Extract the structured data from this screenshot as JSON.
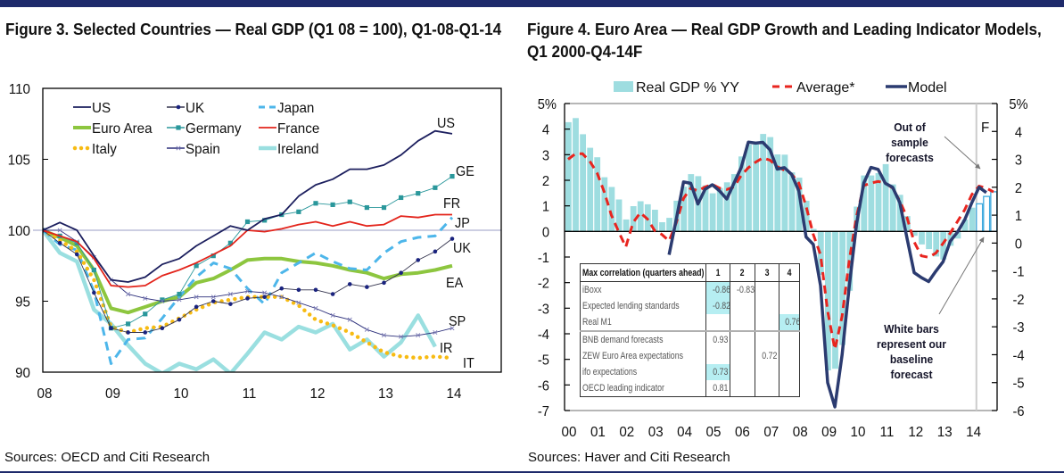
{
  "figure3": {
    "title": "Figure 3. Selected Countries — Real GDP (Q1 08 = 100), Q1-08-Q1-14",
    "source": "Sources: OECD and Citi Research"
  },
  "figure4": {
    "title_line1": "Figure 4. Euro Area — Real GDP Growth and Leading Indicator Models,",
    "title_line2": "Q1 2000-Q4-14F",
    "source": "Sources: Haver and Citi Research"
  },
  "chart_data": [
    {
      "type": "line",
      "title": "Figure 3. Selected Countries — Real GDP (Q1 08 = 100), Q1-08-Q1-14",
      "xlabel": "",
      "ylabel": "",
      "x_range": [
        "Q1-08",
        "Q1-14"
      ],
      "x_ticks": [
        "08",
        "09",
        "10",
        "11",
        "12",
        "13",
        "14"
      ],
      "y_ticks": [
        110,
        105,
        100,
        95,
        90
      ],
      "ylim": [
        90,
        110
      ],
      "reference_line": 100,
      "grid": false,
      "legend_position": "top-left",
      "legend": [
        "US",
        "UK",
        "Japan",
        "Euro Area",
        "Germany",
        "France",
        "Italy",
        "Spain",
        "Ireland"
      ],
      "series": [
        {
          "name": "US",
          "end_label": "US",
          "color": "#1c1f5e",
          "style": "solid",
          "marker": null,
          "values": [
            100,
            100.55,
            100.0,
            98.2,
            96.5,
            96.35,
            96.7,
            97.6,
            98.0,
            98.9,
            99.6,
            100.3,
            100.0,
            100.8,
            101.1,
            102.4,
            103.2,
            103.6,
            104.3,
            104.3,
            104.6,
            105.3,
            106.3,
            107.0,
            106.8
          ]
        },
        {
          "name": "UK",
          "end_label": "UK",
          "color": "#33334d",
          "marker_color": "#1a237e",
          "style": "solid",
          "marker": "dot",
          "values": [
            100,
            99.1,
            98.3,
            95.6,
            93.1,
            92.8,
            92.8,
            93.1,
            93.7,
            94.6,
            95.0,
            94.8,
            95.2,
            95.3,
            95.9,
            95.8,
            95.8,
            95.5,
            96.2,
            96.0,
            96.3,
            97.0,
            97.9,
            98.5,
            99.4
          ]
        },
        {
          "name": "Japan",
          "end_label": "JP",
          "color": "#4db6ea",
          "style": "dashed",
          "marker": null,
          "values": [
            100,
            99.0,
            98.6,
            95.7,
            90.6,
            92.3,
            92.4,
            93.8,
            95.3,
            96.7,
            97.7,
            97.3,
            95.9,
            94.8,
            97.0,
            97.7,
            98.4,
            97.8,
            97.3,
            97.2,
            98.4,
            99.2,
            99.5,
            99.6,
            100.9
          ]
        },
        {
          "name": "Euro Area",
          "end_label": "EA",
          "color": "#8dc63f",
          "style": "solid",
          "marker": null,
          "values": [
            100,
            99.5,
            98.9,
            97.2,
            94.5,
            94.2,
            94.6,
            95.0,
            95.3,
            96.3,
            96.6,
            97.2,
            97.9,
            98.0,
            98.0,
            97.8,
            97.7,
            97.5,
            97.2,
            97.0,
            96.6,
            96.9,
            97.0,
            97.2,
            97.5
          ]
        },
        {
          "name": "Germany",
          "end_label": "GE",
          "color": "#2a979b",
          "style": "solid",
          "marker": "square",
          "values": [
            100,
            99.6,
            99.1,
            97.2,
            93.1,
            93.4,
            94.1,
            95.1,
            95.5,
            97.5,
            98.2,
            99.1,
            100.6,
            100.7,
            101.1,
            101.3,
            101.9,
            101.8,
            102.0,
            101.6,
            101.6,
            102.3,
            102.6,
            103.0,
            103.8
          ]
        },
        {
          "name": "France",
          "end_label": "FR",
          "color": "#e3241b",
          "style": "solid",
          "marker": null,
          "values": [
            100,
            99.6,
            99.2,
            98.0,
            96.1,
            96.0,
            96.1,
            96.8,
            97.2,
            97.7,
            98.3,
            98.9,
            100.0,
            99.9,
            100.1,
            100.4,
            100.6,
            100.3,
            100.6,
            100.3,
            100.4,
            101.0,
            100.9,
            101.1,
            101.1
          ]
        },
        {
          "name": "Italy",
          "end_label": "IT",
          "color": "#f7bb13",
          "style": "dotted",
          "marker": null,
          "values": [
            100,
            99.3,
            98.5,
            96.5,
            93.2,
            92.8,
            93.1,
            93.2,
            93.8,
            94.4,
            94.9,
            95.1,
            95.3,
            95.3,
            95.3,
            94.7,
            93.7,
            93.3,
            92.8,
            92.1,
            91.4,
            91.1,
            91.0,
            91.1,
            91.0
          ]
        },
        {
          "name": "Spain",
          "end_label": "SP",
          "color": "#2b2e7a",
          "style": "solid",
          "marker": "x",
          "values": [
            100,
            100.0,
            99.2,
            98.1,
            96.5,
            95.5,
            95.2,
            95.0,
            95.1,
            95.3,
            95.3,
            95.5,
            95.7,
            95.6,
            95.3,
            94.9,
            94.5,
            94.0,
            93.7,
            93.0,
            92.6,
            92.5,
            92.6,
            92.8,
            93.1
          ]
        },
        {
          "name": "Ireland",
          "end_label": "IR",
          "color": "#9adfe0",
          "style": "solid",
          "marker": null,
          "values": [
            100,
            98.4,
            97.8,
            94.4,
            93.4,
            91.9,
            90.6,
            89.9,
            90.6,
            90.2,
            90.9,
            89.9,
            91.3,
            92.8,
            92.3,
            93.2,
            92.8,
            93.4,
            91.6,
            92.3,
            91.1,
            92.1,
            94.0,
            91.8,
            null
          ]
        }
      ]
    },
    {
      "type": "bar",
      "title": "Figure 4. Euro Area — Real GDP Growth and Leading Indicator Models, Q1 2000-Q4-14F",
      "xlabel": "",
      "ylabel": "",
      "quarters": {
        "start": "Q1 2000",
        "end": "Q4 2014",
        "count": 60
      },
      "x_ticks": [
        "00",
        "01",
        "02",
        "03",
        "04",
        "05",
        "06",
        "07",
        "08",
        "09",
        "10",
        "11",
        "12",
        "13",
        "14"
      ],
      "y_left": {
        "range": [
          -7,
          5
        ],
        "tick_labels": [
          "5%",
          "4",
          "3",
          "2",
          "1",
          "0",
          "-1",
          "-2",
          "-3",
          "-4",
          "-5",
          "-6",
          "-7"
        ]
      },
      "y_right": {
        "range": [
          -6,
          5
        ],
        "tick_labels": [
          "5%",
          "4",
          "3",
          "2",
          "1",
          "0",
          "-1",
          "-2",
          "-3",
          "-4",
          "-5",
          "-6"
        ]
      },
      "grid": false,
      "legend_position": "top-center",
      "forecast_label": "F",
      "series": [
        {
          "name": "Real GDP % YY",
          "type": "bar",
          "axis": "left",
          "color": "#9edde0",
          "forecast_color": "#3fa9dd",
          "forecast_from_index": 57,
          "values": [
            4.27,
            4.43,
            3.8,
            3.27,
            2.9,
            2.12,
            1.74,
            1.25,
            0.47,
            0.99,
            1.18,
            1.06,
            0.85,
            0.36,
            0.53,
            1.2,
            1.75,
            2.24,
            2.16,
            1.8,
            1.49,
            1.7,
            1.92,
            2.24,
            2.93,
            3.4,
            3.4,
            3.81,
            3.69,
            3.01,
            3.0,
            2.31,
            2.1,
            1.2,
            0.1,
            -1.7,
            -5.43,
            -5.37,
            -4.44,
            -2.32,
            0.97,
            2.19,
            2.19,
            2.28,
            2.63,
            1.84,
            1.43,
            0.6,
            -0.17,
            -0.51,
            -0.69,
            -0.98,
            -1.1,
            -0.56,
            -0.28,
            0.47,
            0.93,
            1.08,
            1.37,
            1.55
          ]
        },
        {
          "name": "Average*",
          "type": "line",
          "style": "dashed",
          "axis": "right",
          "color": "#e8251f",
          "start_index": 0,
          "values": [
            3.0,
            3.2,
            3.2,
            2.93,
            2.52,
            1.83,
            1.0,
            0.41,
            -0.14,
            0.73,
            1.09,
            0.86,
            0.45,
            0.31,
            0.08,
            0.73,
            1.6,
            1.97,
            1.87,
            2.01,
            2.1,
            1.97,
            1.92,
            2.01,
            2.42,
            2.7,
            2.9,
            3.05,
            2.97,
            2.74,
            2.61,
            2.47,
            2.15,
            1.32,
            0.31,
            -0.42,
            -2.44,
            -3.81,
            -2.62,
            -0.6,
            0.96,
            2.06,
            2.15,
            2.21,
            2.15,
            1.97,
            1.51,
            0.91,
            0.04,
            -0.46,
            -0.51,
            -0.36,
            -0.01,
            0.36,
            0.77,
            1.19,
            1.74,
            2.04,
            1.97,
            1.83
          ]
        },
        {
          "name": "Model",
          "type": "line",
          "style": "solid",
          "axis": "right",
          "color": "#2b3b70",
          "start_index": 14,
          "values": [
            -0.42,
            0.86,
            2.19,
            2.14,
            1.4,
            1.93,
            2.09,
            1.87,
            1.58,
            2.15,
            2.7,
            3.62,
            3.58,
            3.61,
            3.34,
            2.65,
            2.7,
            2.46,
            1.87,
            0.22,
            -0.05,
            -1.52,
            -5.0,
            -5.87,
            -4.0,
            -1.52,
            0.68,
            2.15,
            2.71,
            2.64,
            2.14,
            2.0,
            1.45,
            0.17,
            -1.06,
            -1.24,
            -1.38,
            -1.01,
            -0.67,
            0.07,
            0.39,
            0.83,
            1.45,
            2.0,
            1.81
          ]
        }
      ],
      "annotations": [
        {
          "id": "out-of-sample",
          "lines": [
            "Out of",
            "sample",
            "forecasts"
          ]
        },
        {
          "id": "white-bars",
          "lines": [
            "White bars",
            "represent our",
            "baseline",
            "forecast"
          ]
        }
      ],
      "table": {
        "header": [
          "Max correlation (quarters ahead)",
          "1",
          "2",
          "3",
          "4"
        ],
        "group_break_after_row": 2,
        "highlight_color": "#b6eef2",
        "rows": [
          {
            "label": "iBoxx",
            "cells": [
              "-0.86",
              "-0.83",
              "",
              ""
            ],
            "highlight": [
              true,
              false,
              false,
              false
            ]
          },
          {
            "label": "Expected lending standards",
            "cells": [
              "-0.82",
              "",
              "",
              ""
            ],
            "highlight": [
              true,
              false,
              false,
              false
            ]
          },
          {
            "label": "Real M1",
            "cells": [
              "",
              "",
              "",
              "0.76"
            ],
            "highlight": [
              false,
              false,
              false,
              true
            ]
          },
          {
            "label": "BNB demand forecasts",
            "cells": [
              "0.93",
              "",
              "",
              ""
            ],
            "highlight": [
              false,
              false,
              false,
              false
            ]
          },
          {
            "label": "ZEW Euro Area expectations",
            "cells": [
              "",
              "",
              "0.72",
              ""
            ],
            "highlight": [
              false,
              false,
              false,
              false
            ]
          },
          {
            "label": "ifo expectations",
            "cells": [
              "0.73",
              "",
              "",
              ""
            ],
            "highlight": [
              true,
              false,
              false,
              false
            ]
          },
          {
            "label": "OECD leading indicator",
            "cells": [
              "0.81",
              "",
              "",
              ""
            ],
            "highlight": [
              false,
              false,
              false,
              false
            ]
          }
        ]
      }
    }
  ]
}
